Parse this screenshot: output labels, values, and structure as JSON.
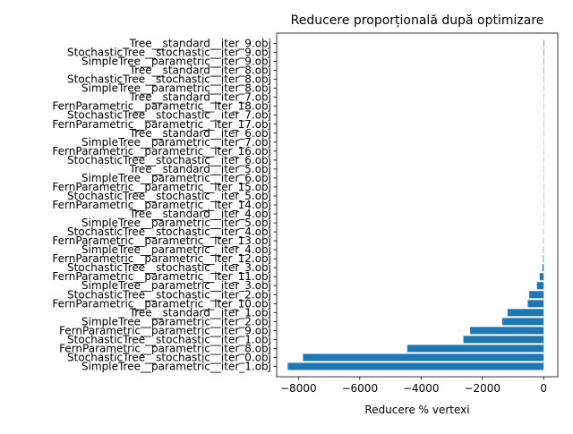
{
  "chart_data": {
    "type": "bar",
    "orientation": "horizontal",
    "title": "Reducere proporțională după optimizare",
    "xlabel": "Reducere % vertexi",
    "ylabel": "",
    "xlim": [
      -8710,
      460
    ],
    "xticks": [
      -8000,
      -6000,
      -4000,
      -2000,
      0
    ],
    "xtick_labels": [
      "−8000",
      "−6000",
      "−4000",
      "−2000",
      "0"
    ],
    "color": "#1f77b4",
    "grid": false,
    "categories": [
      "SimpleTree__parametric__iter_1.obj",
      "StochasticTree__stochastic__iter_0.obj",
      "FernParametric__parametric__iter_8.obj",
      "StochasticTree__stochastic__iter_1.obj",
      "FernParametric__parametric__iter_9.obj",
      "SimpleTree__parametric__iter_2.obj",
      "Tree__standard__iter_1.obj",
      "FernParametric__parametric__iter_10.obj",
      "StochasticTree__stochastic__iter_2.obj",
      "SimpleTree__parametric__iter_3.obj",
      "FernParametric__parametric__iter_11.obj",
      "StochasticTree__stochastic__iter_3.obj",
      "FernParametric__parametric__iter_12.obj",
      "SimpleTree__parametric__iter_4.obj",
      "FernParametric__parametric__iter_13.obj",
      "StochasticTree__stochastic__iter_4.obj",
      "SimpleTree__parametric__iter_5.obj",
      "Tree__standard__iter_4.obj",
      "FernParametric__parametric__iter_14.obj",
      "StochasticTree__stochastic__iter_5.obj",
      "FernParametric__parametric__iter_15.obj",
      "SimpleTree__parametric__iter_6.obj",
      "Tree__standard__iter_5.obj",
      "StochasticTree__stochastic__iter_6.obj",
      "FernParametric__parametric__iter_16.obj",
      "SimpleTree__parametric__iter_7.obj",
      "Tree__standard__iter_6.obj",
      "FernParametric__parametric__iter_17.obj",
      "StochasticTree__stochastic__iter_7.obj",
      "FernParametric__parametric__iter_18.obj",
      "Tree__standard__iter_7.obj",
      "SimpleTree__parametric__iter_8.obj",
      "StochasticTree__stochastic__iter_8.obj",
      "Tree__standard__iter_8.obj",
      "SimpleTree__parametric__iter_9.obj",
      "StochasticTree__stochastic__iter_9.obj",
      "Tree__standard__iter_9.obj"
    ],
    "values": [
      -8350,
      -7850,
      -4450,
      -2620,
      -2400,
      -1350,
      -1180,
      -520,
      -470,
      -220,
      -130,
      -40,
      -20,
      -15,
      -12,
      -10,
      -9,
      -8,
      -7,
      -6,
      -5,
      -4,
      -3,
      2,
      3,
      4,
      5,
      6,
      7,
      8,
      9,
      10,
      12,
      14,
      16,
      18,
      20
    ]
  }
}
